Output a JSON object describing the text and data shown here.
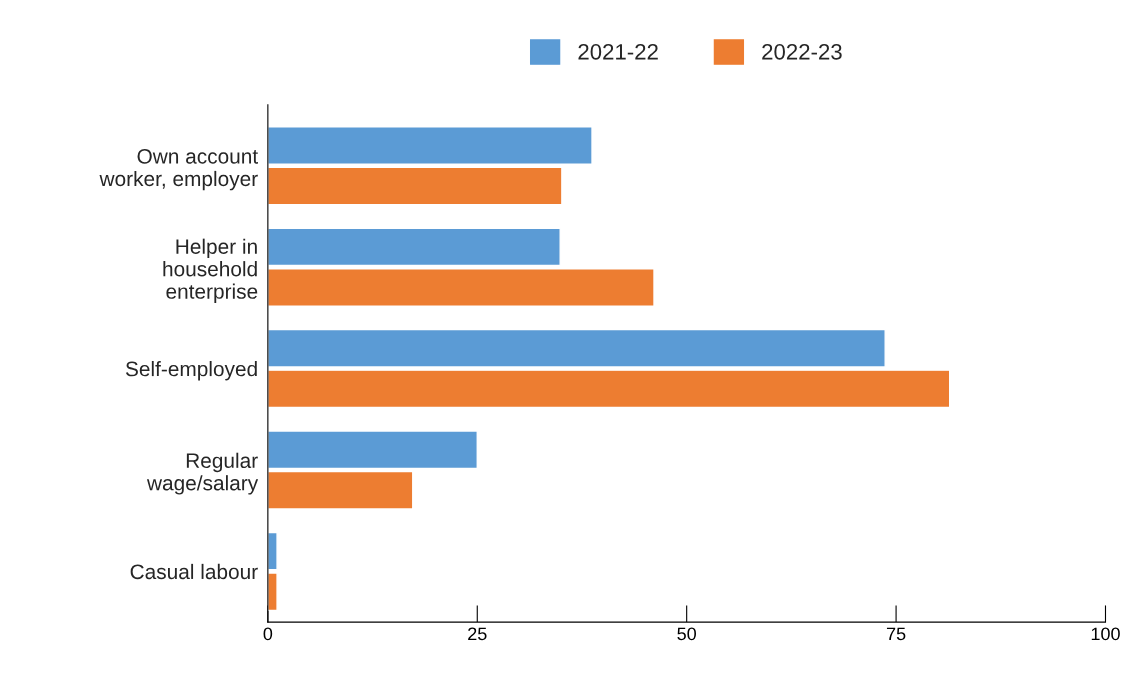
{
  "chart_data": {
    "type": "bar",
    "orientation": "horizontal",
    "categories": [
      "Own account\nworker, employer",
      "Helper in\nhousehold\nenterprise",
      "Self-employed",
      "Regular\nwage/salary",
      "Casual labour"
    ],
    "series": [
      {
        "name": "2021-22",
        "color": "#5b9bd5",
        "values": [
          38.7,
          34.9,
          73.7,
          25.0,
          1.1
        ]
      },
      {
        "name": "2022-23",
        "color": "#ed7d31",
        "values": [
          35.1,
          46.1,
          81.4,
          17.3,
          1.1
        ]
      }
    ],
    "xlim": [
      0,
      100
    ],
    "xticks": [
      0,
      25,
      50,
      75,
      100
    ],
    "grid": false,
    "legend": "top"
  }
}
